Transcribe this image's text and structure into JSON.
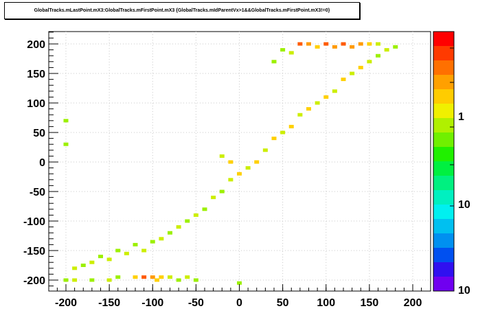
{
  "title": "GlobalTracks.mLastPoint.mX3:GlobalTracks.mFirstPoint.mX3 {GlobalTracks.mIdParentVx>1&&GlobalTracks.mFirstPoint.mX3!=0}",
  "chart_data": {
    "type": "heatmap",
    "title": "GlobalTracks.mLastPoint.mX3:GlobalTracks.mFirstPoint.mX3 {GlobalTracks.mIdParentVx>1&&GlobalTracks.mFirstPoint.mX3!=0}",
    "xlabel": "",
    "ylabel": "",
    "xlim": [
      -220,
      220
    ],
    "ylim": [
      -210,
      220
    ],
    "x_ticks": [
      -200,
      -150,
      -100,
      -50,
      0,
      50,
      100,
      150,
      200
    ],
    "y_ticks": [
      -200,
      -150,
      -100,
      -50,
      0,
      50,
      100,
      150,
      200
    ],
    "colorbar": {
      "scale": "log",
      "labels": [
        "1",
        "10",
        "10"
      ]
    },
    "grid": true,
    "bins_description": "2D histogram; counts concentrated along diagonal from (-200,-200) to (200,200) with highest density near y=200 between x=70 and x=150 and near y=-200 between x=-120 and x=-50",
    "cells": [
      [
        -200,
        -200,
        1
      ],
      [
        -190,
        -200,
        2
      ],
      [
        -170,
        -200,
        1
      ],
      [
        -150,
        -200,
        2
      ],
      [
        -140,
        -195,
        1
      ],
      [
        -120,
        -195,
        3
      ],
      [
        -110,
        -195,
        5
      ],
      [
        -100,
        -195,
        4
      ],
      [
        -95,
        -200,
        3
      ],
      [
        -90,
        -195,
        3
      ],
      [
        -80,
        -195,
        2
      ],
      [
        -70,
        -200,
        1
      ],
      [
        -60,
        -195,
        2
      ],
      [
        -50,
        -200,
        1
      ],
      [
        0,
        -205,
        1
      ],
      [
        -190,
        -180,
        2
      ],
      [
        -180,
        -175,
        1
      ],
      [
        -170,
        -170,
        2
      ],
      [
        -160,
        -160,
        1
      ],
      [
        -150,
        -165,
        2
      ],
      [
        -140,
        -150,
        1
      ],
      [
        -130,
        -155,
        2
      ],
      [
        -120,
        -140,
        1
      ],
      [
        -110,
        -150,
        2
      ],
      [
        -100,
        -135,
        1
      ],
      [
        -90,
        -130,
        2
      ],
      [
        -80,
        -120,
        1
      ],
      [
        -70,
        -110,
        2
      ],
      [
        -60,
        -100,
        1
      ],
      [
        -50,
        -90,
        2
      ],
      [
        -40,
        -80,
        1
      ],
      [
        -30,
        -60,
        2
      ],
      [
        -20,
        -50,
        1
      ],
      [
        -10,
        -30,
        2
      ],
      [
        0,
        -20,
        3
      ],
      [
        10,
        -10,
        2
      ],
      [
        20,
        0,
        3
      ],
      [
        -20,
        10,
        2
      ],
      [
        -10,
        0,
        3
      ],
      [
        30,
        20,
        2
      ],
      [
        40,
        40,
        3
      ],
      [
        50,
        50,
        2
      ],
      [
        60,
        60,
        3
      ],
      [
        70,
        80,
        2
      ],
      [
        80,
        90,
        3
      ],
      [
        90,
        100,
        2
      ],
      [
        100,
        110,
        3
      ],
      [
        110,
        120,
        2
      ],
      [
        120,
        140,
        3
      ],
      [
        130,
        150,
        2
      ],
      [
        140,
        160,
        3
      ],
      [
        150,
        170,
        2
      ],
      [
        160,
        180,
        1
      ],
      [
        170,
        190,
        2
      ],
      [
        180,
        195,
        1
      ],
      [
        70,
        200,
        5
      ],
      [
        80,
        200,
        4
      ],
      [
        100,
        200,
        5
      ],
      [
        120,
        200,
        5
      ],
      [
        130,
        195,
        4
      ],
      [
        140,
        200,
        4
      ],
      [
        150,
        200,
        3
      ],
      [
        160,
        200,
        2
      ],
      [
        90,
        195,
        3
      ],
      [
        110,
        195,
        4
      ],
      [
        60,
        185,
        2
      ],
      [
        50,
        190,
        1
      ],
      [
        40,
        170,
        1
      ],
      [
        -200,
        70,
        1
      ],
      [
        -200,
        30,
        1
      ]
    ]
  }
}
